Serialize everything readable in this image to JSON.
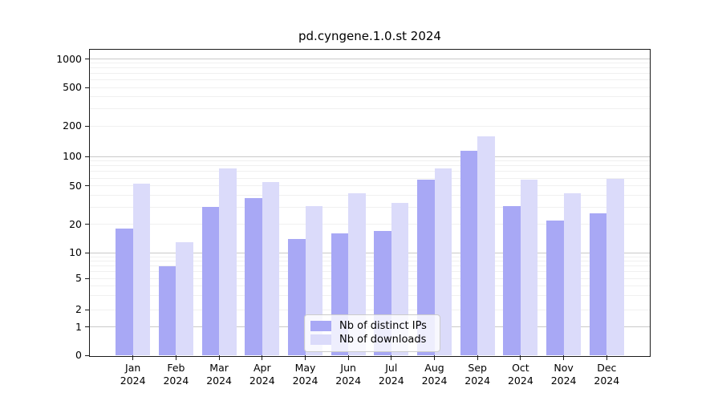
{
  "title": "pd.cyngene.1.0.st 2024",
  "legend": {
    "items": [
      {
        "label": "Nb of distinct IPs",
        "color": "#a8a8f5"
      },
      {
        "label": "Nb of downloads",
        "color": "#dbdbfa"
      }
    ]
  },
  "y_axis": {
    "tick_labels": [
      "0",
      "1",
      "2",
      "5",
      "10",
      "20",
      "50",
      "100",
      "200",
      "500",
      "1000"
    ]
  },
  "x_axis": {
    "tick_labels": [
      "Jan 2024",
      "Feb 2024",
      "Mar 2024",
      "Apr 2024",
      "May 2024",
      "Jun 2024",
      "Jul 2024",
      "Aug 2024",
      "Sep 2024",
      "Oct 2024",
      "Nov 2024",
      "Dec 2024"
    ]
  },
  "chart_data": {
    "type": "bar",
    "title": "pd.cyngene.1.0.st 2024",
    "categories": [
      "Jan 2024",
      "Feb 2024",
      "Mar 2024",
      "Apr 2024",
      "May 2024",
      "Jun 2024",
      "Jul 2024",
      "Aug 2024",
      "Sep 2024",
      "Oct 2024",
      "Nov 2024",
      "Dec 2024"
    ],
    "series": [
      {
        "name": "Nb of distinct IPs",
        "color": "#a8a8f5",
        "values": [
          18,
          7,
          30,
          37,
          14,
          16,
          17,
          58,
          115,
          31,
          22,
          26
        ]
      },
      {
        "name": "Nb of downloads",
        "color": "#dbdbfa",
        "values": [
          53,
          13,
          75,
          55,
          31,
          42,
          33,
          75,
          157,
          58,
          42,
          59
        ]
      }
    ],
    "xlabel": "",
    "ylabel": "",
    "y_ticks": [
      0,
      1,
      2,
      5,
      10,
      20,
      50,
      100,
      200,
      500,
      1000
    ],
    "y_scale": "log-like (compressed near 0, zero baseline shown)",
    "ylim": [
      0,
      1300
    ],
    "grid": "horizontal: solid gray at 1,10,100,1000; faint minor log lines",
    "legend_position": "lower center inside plot"
  }
}
